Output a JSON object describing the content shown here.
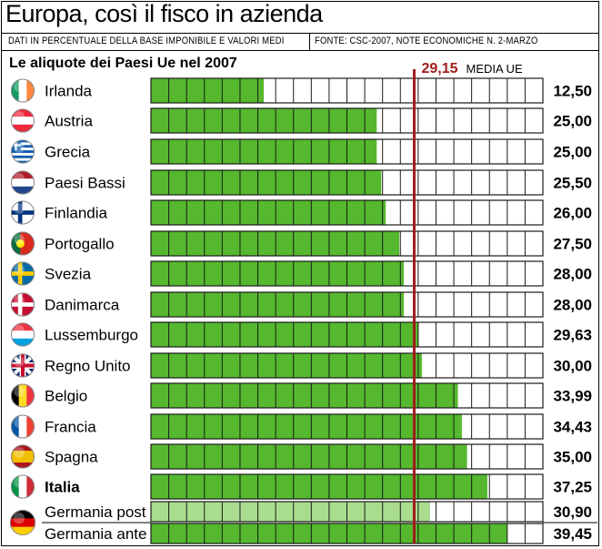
{
  "header": {
    "title": "Europa, così il fisco in azienda",
    "subtitle_left": "DATI IN PERCENTUALE DELLA BASE IMPONIBILE E VALORI MEDI",
    "subtitle_right": "FONTE: CSC-2007, NOTE ECONOMICHE N. 2-MARZO"
  },
  "colors": {
    "bar": "#55b82e",
    "bar_light": "#a9dc8f",
    "cell_border": "#1a1a1a",
    "mean_line": "#a01c1c"
  },
  "chart_data": {
    "type": "bar",
    "orientation": "horizontal",
    "title": "Le aliquote dei Paesi Ue nel 2007",
    "xlim": [
      0,
      43.4
    ],
    "cell_step": 2,
    "categories": [
      "Irlanda",
      "Austria",
      "Grecia",
      "Paesi Bassi",
      "Finlandia",
      "Portogallo",
      "Svezia",
      "Danimarca",
      "Lussemburgo",
      "Regno Unito",
      "Belgio",
      "Francia",
      "Spagna",
      "Italia",
      "Germania post",
      "Germania ante"
    ],
    "values": [
      12.5,
      25.0,
      25.0,
      25.5,
      26.0,
      27.5,
      28.0,
      28.0,
      29.63,
      30.0,
      33.99,
      34.43,
      35.0,
      37.25,
      30.9,
      39.45
    ],
    "value_labels": [
      "12,50",
      "25,00",
      "25,00",
      "25,50",
      "26,00",
      "27,50",
      "28,00",
      "28,00",
      "29,63",
      "30,00",
      "33,99",
      "34,43",
      "35,00",
      "37,25",
      "30,90",
      "39,45"
    ],
    "highlight": "Italia",
    "flags": [
      "ireland-flag-icon",
      "austria-flag-icon",
      "greece-flag-icon",
      "netherlands-flag-icon",
      "finland-flag-icon",
      "portugal-flag-icon",
      "sweden-flag-icon",
      "denmark-flag-icon",
      "luxembourg-flag-icon",
      "united-kingdom-flag-icon",
      "belgium-flag-icon",
      "france-flag-icon",
      "spain-flag-icon",
      "italy-flag-icon",
      "germany-flag-icon",
      "germany-flag-icon"
    ],
    "mean": {
      "value": 29.15,
      "label": "29,15",
      "text": "MEDIA UE"
    }
  }
}
